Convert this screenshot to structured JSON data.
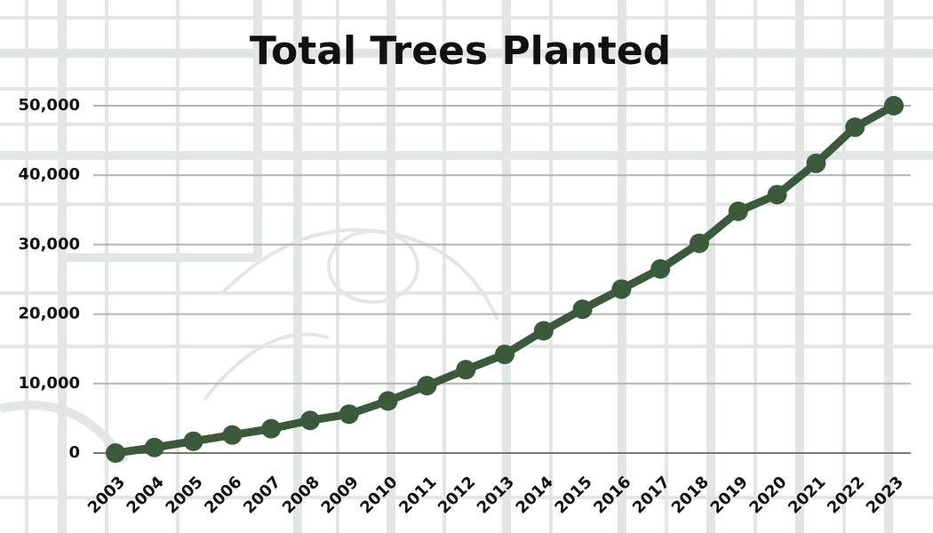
{
  "chart_data": {
    "type": "line",
    "title": "Total Trees Planted",
    "categories": [
      "2003",
      "2004",
      "2005",
      "2006",
      "2007",
      "2008",
      "2009",
      "2010",
      "2011",
      "2012",
      "2013",
      "2014",
      "2015",
      "2016",
      "2017",
      "2018",
      "2019",
      "2020",
      "2021",
      "2022",
      "2023"
    ],
    "values": [
      0,
      800,
      1700,
      2600,
      3500,
      4700,
      5600,
      7500,
      9700,
      12000,
      14200,
      17600,
      20700,
      23600,
      26500,
      30200,
      34800,
      37200,
      41700,
      46900,
      50000
    ],
    "color": "#3b5a3c",
    "ylim": [
      0,
      50000
    ],
    "yticks": [
      0,
      {
        "value": 10000,
        "label": "10,000"
      },
      {
        "value": 20000,
        "label": "20,000"
      },
      {
        "value": 30000,
        "label": "30,000"
      },
      {
        "value": 40000,
        "label": "40,000"
      },
      {
        "value": 50000,
        "label": "50,000"
      }
    ],
    "grid": true
  }
}
